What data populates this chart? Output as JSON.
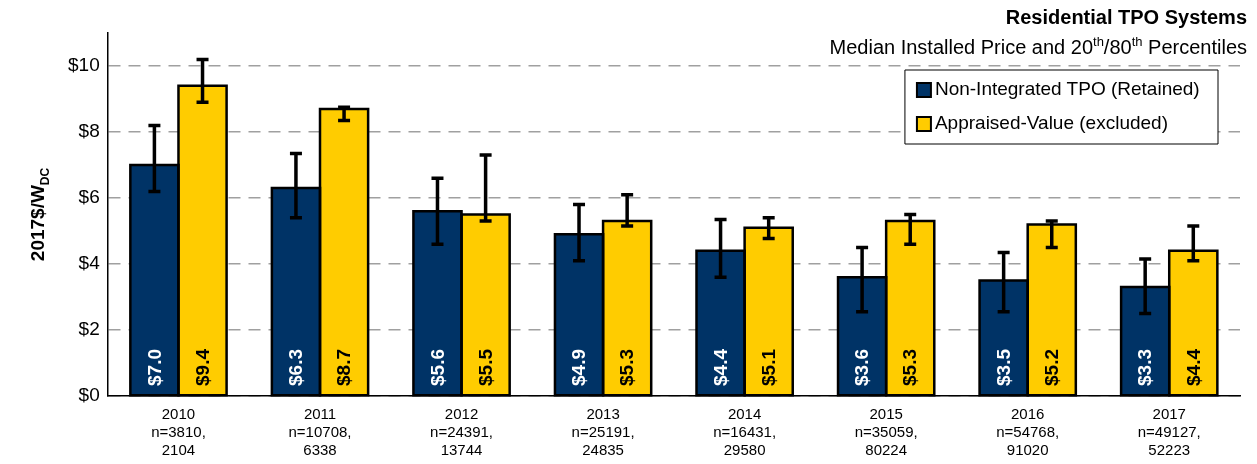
{
  "chart_data": {
    "type": "bar",
    "title": "Residential TPO Systems",
    "subtitle": "Median Installed Price and 20$^{th}$/80$^{th}$ Percentiles",
    "ylabel": "2017$/W$_{DC}$",
    "categories": [
      "2010\nn=3810,\n2104",
      "2011\nn=10708,\n6338",
      "2012\nn=24391,\n13744",
      "2013\nn=25191,\n24835",
      "2014\nn=16431,\n29580",
      "2015\nn=35059,\n80224",
      "2016\nn=54768,\n91020",
      "2017\nn=49127,\n52223"
    ],
    "series": [
      {
        "name": "Non-Integrated TPO (Retained)",
        "color": "#003366",
        "values": [
          7.0,
          6.3,
          5.6,
          4.9,
          4.4,
          3.6,
          3.5,
          3.3
        ],
        "value_labels": [
          "$7.0",
          "$6.3",
          "$5.6",
          "$4.9",
          "$4.4",
          "$3.6",
          "$3.5",
          "$3.3"
        ],
        "errors": [
          [
            6.2,
            8.2
          ],
          [
            5.4,
            7.35
          ],
          [
            4.6,
            6.6
          ],
          [
            4.1,
            5.8
          ],
          [
            3.6,
            5.35
          ],
          [
            2.55,
            4.5
          ],
          [
            2.55,
            4.35
          ],
          [
            2.5,
            4.15
          ]
        ]
      },
      {
        "name": "Appraised-Value (excluded)",
        "color": "#ffcc00",
        "values": [
          9.4,
          8.7,
          5.5,
          5.3,
          5.1,
          5.3,
          5.2,
          4.4
        ],
        "value_labels": [
          "$9.4",
          "$8.7",
          "$5.5",
          "$5.3",
          "$5.1",
          "$5.3",
          "$5.2",
          "$4.4"
        ],
        "errors": [
          [
            8.9,
            10.2
          ],
          [
            8.35,
            8.75
          ],
          [
            5.3,
            7.3
          ],
          [
            5.15,
            6.1
          ],
          [
            4.77,
            5.4
          ],
          [
            4.6,
            5.5
          ],
          [
            4.5,
            5.3
          ],
          [
            4.1,
            5.15
          ]
        ]
      }
    ],
    "ylim": [
      0,
      11
    ],
    "yticks": [
      {
        "value": 0,
        "label": "$0"
      },
      {
        "value": 2,
        "label": "$2"
      },
      {
        "value": 4,
        "label": "$4"
      },
      {
        "value": 6,
        "label": "$6"
      },
      {
        "value": 8,
        "label": "$8"
      },
      {
        "value": 10,
        "label": "$10"
      }
    ],
    "grid": "y",
    "legend": "top right"
  }
}
